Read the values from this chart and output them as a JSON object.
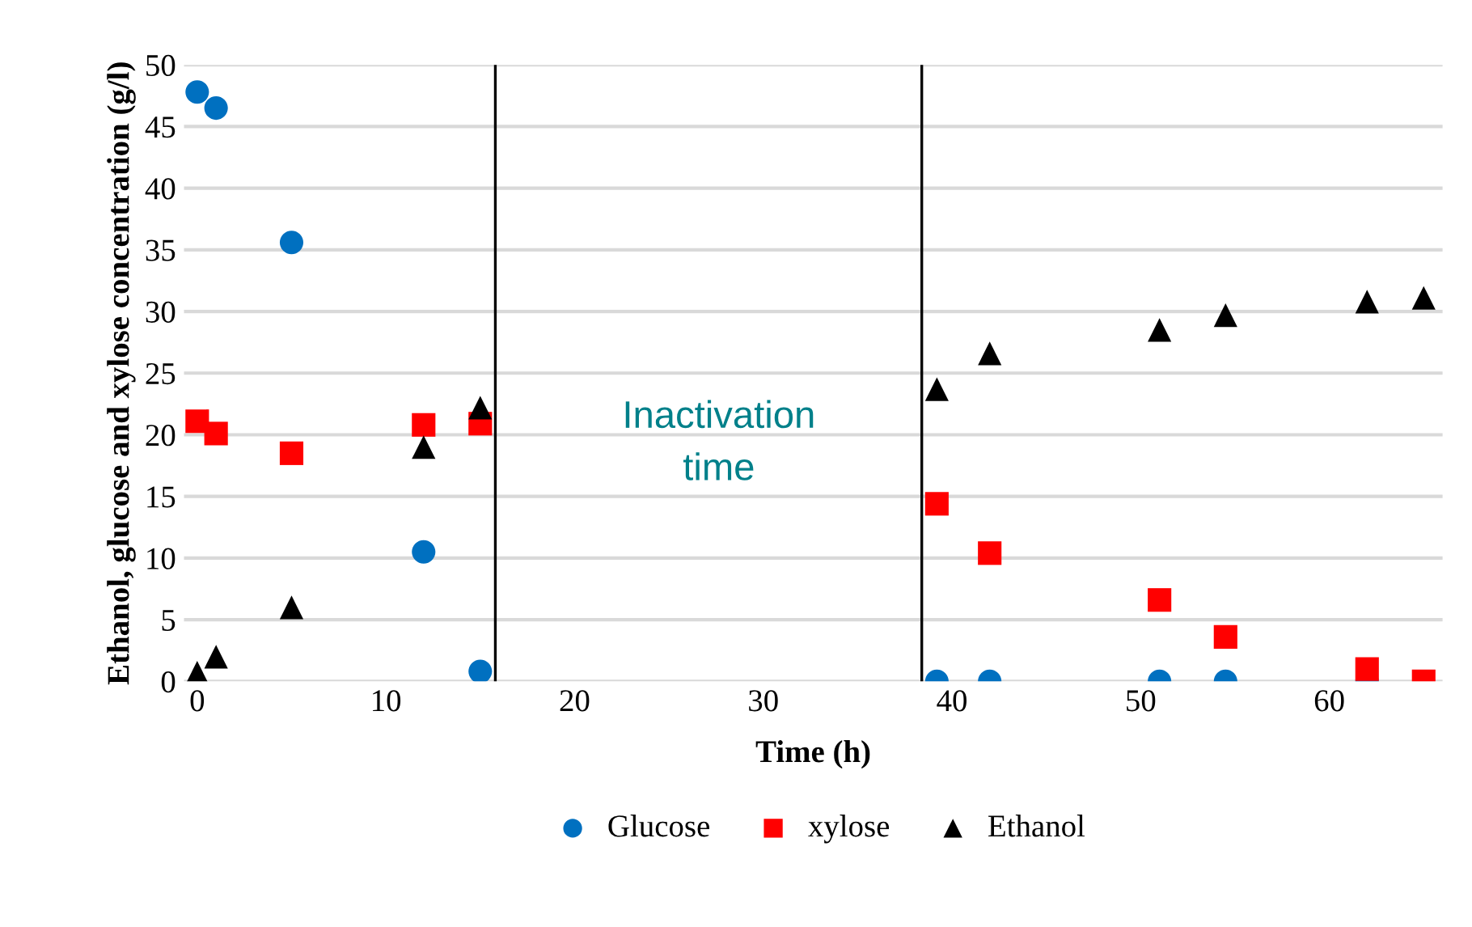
{
  "chart_data": {
    "type": "scatter",
    "xlabel": "Time (h)",
    "ylabel": "Ethanol, glucose and xylose concentration (g/l)",
    "xlim": [
      -0.7,
      66
    ],
    "xticks": [
      0,
      10,
      20,
      30,
      40,
      50,
      60
    ],
    "ylim": [
      0,
      50
    ],
    "yticks": [
      0,
      5,
      10,
      15,
      20,
      25,
      30,
      35,
      40,
      45,
      50
    ],
    "grid": "y",
    "legend": "bottom",
    "series": [
      {
        "name": "Glucose",
        "color": "#0070c0",
        "marker": "circle",
        "x": [
          0,
          1,
          5,
          12,
          15,
          39.2,
          42,
          51,
          54.5,
          62
        ],
        "values": [
          47.8,
          46.5,
          35.6,
          10.5,
          0.8,
          0,
          0,
          0,
          0,
          0
        ]
      },
      {
        "name": "xylose",
        "color": "#ff0000",
        "marker": "square",
        "x": [
          0,
          1,
          5,
          12,
          15,
          39.2,
          42,
          51,
          54.5,
          62,
          65
        ],
        "values": [
          21.1,
          20.1,
          18.5,
          20.8,
          20.9,
          14.4,
          10.4,
          6.6,
          3.6,
          1.0,
          0
        ]
      },
      {
        "name": "Ethanol",
        "color": "#000000",
        "marker": "triangle",
        "x": [
          0,
          1,
          5,
          12,
          15,
          39.2,
          42,
          51,
          54.5,
          62,
          65
        ],
        "values": [
          0.7,
          2.0,
          6.0,
          19.0,
          22.2,
          23.7,
          26.6,
          28.5,
          29.7,
          30.8,
          31.1
        ]
      }
    ],
    "ref_lines": [
      {
        "axis": "x",
        "value": 15.8,
        "color": "#000000"
      },
      {
        "axis": "x",
        "value": 38.4,
        "color": "#000000"
      }
    ],
    "annotations": [
      "Inactivation\ntime"
    ]
  }
}
